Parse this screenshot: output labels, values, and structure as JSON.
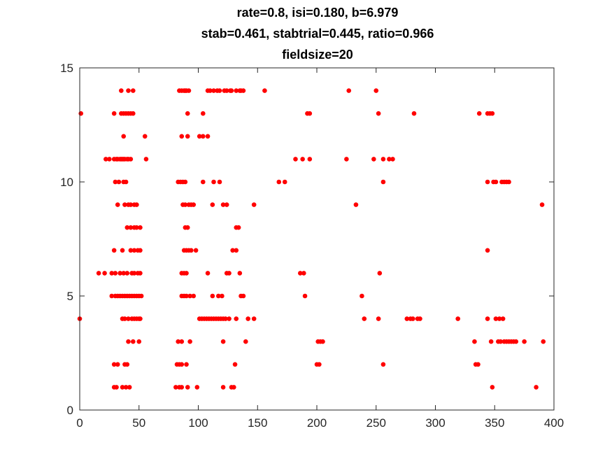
{
  "chart_data": {
    "type": "scatter",
    "title_lines": [
      "rate=0.8, isi=0.180, b=6.979",
      "stab=0.461, stabtrial=0.445, ratio=0.966",
      "fieldsize=20"
    ],
    "xlabel": "",
    "ylabel": "",
    "xlim": [
      0,
      400
    ],
    "ylim": [
      0,
      15
    ],
    "xticks": [
      "0",
      "50",
      "100",
      "150",
      "200",
      "250",
      "300",
      "350",
      "400"
    ],
    "yticks": [
      "0",
      "5",
      "10",
      "15"
    ],
    "grid": false,
    "legend": "none",
    "marker_color": "#ff0000",
    "axis_color": "#262626",
    "series": [
      {
        "points": [
          [
            35,
            14
          ],
          [
            41,
            14
          ],
          [
            45,
            14
          ],
          [
            84,
            14
          ],
          [
            86,
            14
          ],
          [
            88,
            14
          ],
          [
            89,
            14
          ],
          [
            90,
            14
          ],
          [
            92,
            14
          ],
          [
            108,
            14
          ],
          [
            110,
            14
          ],
          [
            113,
            14
          ],
          [
            116,
            14
          ],
          [
            118,
            14
          ],
          [
            122,
            14
          ],
          [
            124,
            14
          ],
          [
            127,
            14
          ],
          [
            128,
            14
          ],
          [
            132,
            14
          ],
          [
            135,
            14
          ],
          [
            136,
            14
          ],
          [
            138,
            14
          ],
          [
            156,
            14
          ],
          [
            227,
            14
          ],
          [
            250,
            14
          ],
          [
            1,
            13
          ],
          [
            29,
            13
          ],
          [
            35,
            13
          ],
          [
            37,
            13
          ],
          [
            39,
            13
          ],
          [
            41,
            13
          ],
          [
            43,
            13
          ],
          [
            45,
            13
          ],
          [
            91,
            13
          ],
          [
            104,
            13
          ],
          [
            192,
            13
          ],
          [
            194,
            13
          ],
          [
            252,
            13
          ],
          [
            282,
            13
          ],
          [
            337,
            13
          ],
          [
            344,
            13
          ],
          [
            346,
            13
          ],
          [
            348,
            13
          ],
          [
            37,
            12
          ],
          [
            55,
            12
          ],
          [
            86,
            12
          ],
          [
            91,
            12
          ],
          [
            101,
            12
          ],
          [
            104,
            12
          ],
          [
            108,
            12
          ],
          [
            22,
            11
          ],
          [
            25,
            11
          ],
          [
            29,
            11
          ],
          [
            31,
            11
          ],
          [
            32,
            11
          ],
          [
            34,
            11
          ],
          [
            35,
            11
          ],
          [
            36,
            11
          ],
          [
            37,
            11
          ],
          [
            38,
            11
          ],
          [
            40,
            11
          ],
          [
            41,
            11
          ],
          [
            43,
            11
          ],
          [
            56,
            11
          ],
          [
            182,
            11
          ],
          [
            188,
            11
          ],
          [
            194,
            11
          ],
          [
            225,
            11
          ],
          [
            248,
            11
          ],
          [
            256,
            11
          ],
          [
            261,
            11
          ],
          [
            264,
            11
          ],
          [
            30,
            10
          ],
          [
            33,
            10
          ],
          [
            37,
            10
          ],
          [
            39,
            10
          ],
          [
            83,
            10
          ],
          [
            85,
            10
          ],
          [
            87,
            10
          ],
          [
            89,
            10
          ],
          [
            104,
            10
          ],
          [
            113,
            10
          ],
          [
            118,
            10
          ],
          [
            168,
            10
          ],
          [
            173,
            10
          ],
          [
            256,
            10
          ],
          [
            344,
            10
          ],
          [
            349,
            10
          ],
          [
            351,
            10
          ],
          [
            356,
            10
          ],
          [
            358,
            10
          ],
          [
            360,
            10
          ],
          [
            362,
            10
          ],
          [
            32,
            9
          ],
          [
            38,
            9
          ],
          [
            41,
            9
          ],
          [
            43,
            9
          ],
          [
            46,
            9
          ],
          [
            48,
            9
          ],
          [
            87,
            9
          ],
          [
            89,
            9
          ],
          [
            92,
            9
          ],
          [
            94,
            9
          ],
          [
            96,
            9
          ],
          [
            112,
            9
          ],
          [
            121,
            9
          ],
          [
            124,
            9
          ],
          [
            147,
            9
          ],
          [
            233,
            9
          ],
          [
            390,
            9
          ],
          [
            40,
            8
          ],
          [
            43,
            8
          ],
          [
            46,
            8
          ],
          [
            48,
            8
          ],
          [
            51,
            8
          ],
          [
            89,
            8
          ],
          [
            91,
            8
          ],
          [
            132,
            8
          ],
          [
            134,
            8
          ],
          [
            29,
            7
          ],
          [
            36,
            7
          ],
          [
            43,
            7
          ],
          [
            46,
            7
          ],
          [
            49,
            7
          ],
          [
            51,
            7
          ],
          [
            88,
            7
          ],
          [
            90,
            7
          ],
          [
            92,
            7
          ],
          [
            94,
            7
          ],
          [
            98,
            7
          ],
          [
            129,
            7
          ],
          [
            132,
            7
          ],
          [
            344,
            7
          ],
          [
            16,
            6
          ],
          [
            21,
            6
          ],
          [
            27,
            6
          ],
          [
            30,
            6
          ],
          [
            34,
            6
          ],
          [
            37,
            6
          ],
          [
            40,
            6
          ],
          [
            44,
            6
          ],
          [
            46,
            6
          ],
          [
            49,
            6
          ],
          [
            51,
            6
          ],
          [
            86,
            6
          ],
          [
            88,
            6
          ],
          [
            90,
            6
          ],
          [
            108,
            6
          ],
          [
            124,
            6
          ],
          [
            126,
            6
          ],
          [
            135,
            6
          ],
          [
            186,
            6
          ],
          [
            189,
            6
          ],
          [
            253,
            6
          ],
          [
            27,
            5
          ],
          [
            30,
            5
          ],
          [
            32,
            5
          ],
          [
            34,
            5
          ],
          [
            36,
            5
          ],
          [
            38,
            5
          ],
          [
            40,
            5
          ],
          [
            42,
            5
          ],
          [
            44,
            5
          ],
          [
            46,
            5
          ],
          [
            48,
            5
          ],
          [
            50,
            5
          ],
          [
            52,
            5
          ],
          [
            86,
            5
          ],
          [
            88,
            5
          ],
          [
            90,
            5
          ],
          [
            93,
            5
          ],
          [
            96,
            5
          ],
          [
            112,
            5
          ],
          [
            117,
            5
          ],
          [
            120,
            5
          ],
          [
            136,
            5
          ],
          [
            138,
            5
          ],
          [
            190,
            5
          ],
          [
            238,
            5
          ],
          [
            0,
            4
          ],
          [
            36,
            4
          ],
          [
            38,
            4
          ],
          [
            41,
            4
          ],
          [
            44,
            4
          ],
          [
            46,
            4
          ],
          [
            48,
            4
          ],
          [
            50,
            4
          ],
          [
            51,
            4
          ],
          [
            101,
            4
          ],
          [
            103,
            4
          ],
          [
            105,
            4
          ],
          [
            107,
            4
          ],
          [
            109,
            4
          ],
          [
            111,
            4
          ],
          [
            113,
            4
          ],
          [
            115,
            4
          ],
          [
            117,
            4
          ],
          [
            119,
            4
          ],
          [
            121,
            4
          ],
          [
            123,
            4
          ],
          [
            126,
            4
          ],
          [
            132,
            4
          ],
          [
            142,
            4
          ],
          [
            147,
            4
          ],
          [
            240,
            4
          ],
          [
            252,
            4
          ],
          [
            276,
            4
          ],
          [
            279,
            4
          ],
          [
            281,
            4
          ],
          [
            285,
            4
          ],
          [
            287,
            4
          ],
          [
            319,
            4
          ],
          [
            344,
            4
          ],
          [
            351,
            4
          ],
          [
            354,
            4
          ],
          [
            357,
            4
          ],
          [
            41,
            3
          ],
          [
            45,
            3
          ],
          [
            50,
            3
          ],
          [
            83,
            3
          ],
          [
            86,
            3
          ],
          [
            93,
            3
          ],
          [
            121,
            3
          ],
          [
            140,
            3
          ],
          [
            201,
            3
          ],
          [
            203,
            3
          ],
          [
            205,
            3
          ],
          [
            333,
            3
          ],
          [
            347,
            3
          ],
          [
            353,
            3
          ],
          [
            355,
            3
          ],
          [
            358,
            3
          ],
          [
            360,
            3
          ],
          [
            362,
            3
          ],
          [
            364,
            3
          ],
          [
            366,
            3
          ],
          [
            368,
            3
          ],
          [
            375,
            3
          ],
          [
            391,
            3
          ],
          [
            29,
            2
          ],
          [
            32,
            2
          ],
          [
            38,
            2
          ],
          [
            40,
            2
          ],
          [
            82,
            2
          ],
          [
            84,
            2
          ],
          [
            86,
            2
          ],
          [
            90,
            2
          ],
          [
            131,
            2
          ],
          [
            200,
            2
          ],
          [
            202,
            2
          ],
          [
            256,
            2
          ],
          [
            334,
            2
          ],
          [
            336,
            2
          ],
          [
            29,
            1
          ],
          [
            31,
            1
          ],
          [
            36,
            1
          ],
          [
            39,
            1
          ],
          [
            42,
            1
          ],
          [
            81,
            1
          ],
          [
            84,
            1
          ],
          [
            86,
            1
          ],
          [
            91,
            1
          ],
          [
            99,
            1
          ],
          [
            121,
            1
          ],
          [
            128,
            1
          ],
          [
            130,
            1
          ],
          [
            348,
            1
          ],
          [
            385,
            1
          ]
        ]
      }
    ]
  }
}
